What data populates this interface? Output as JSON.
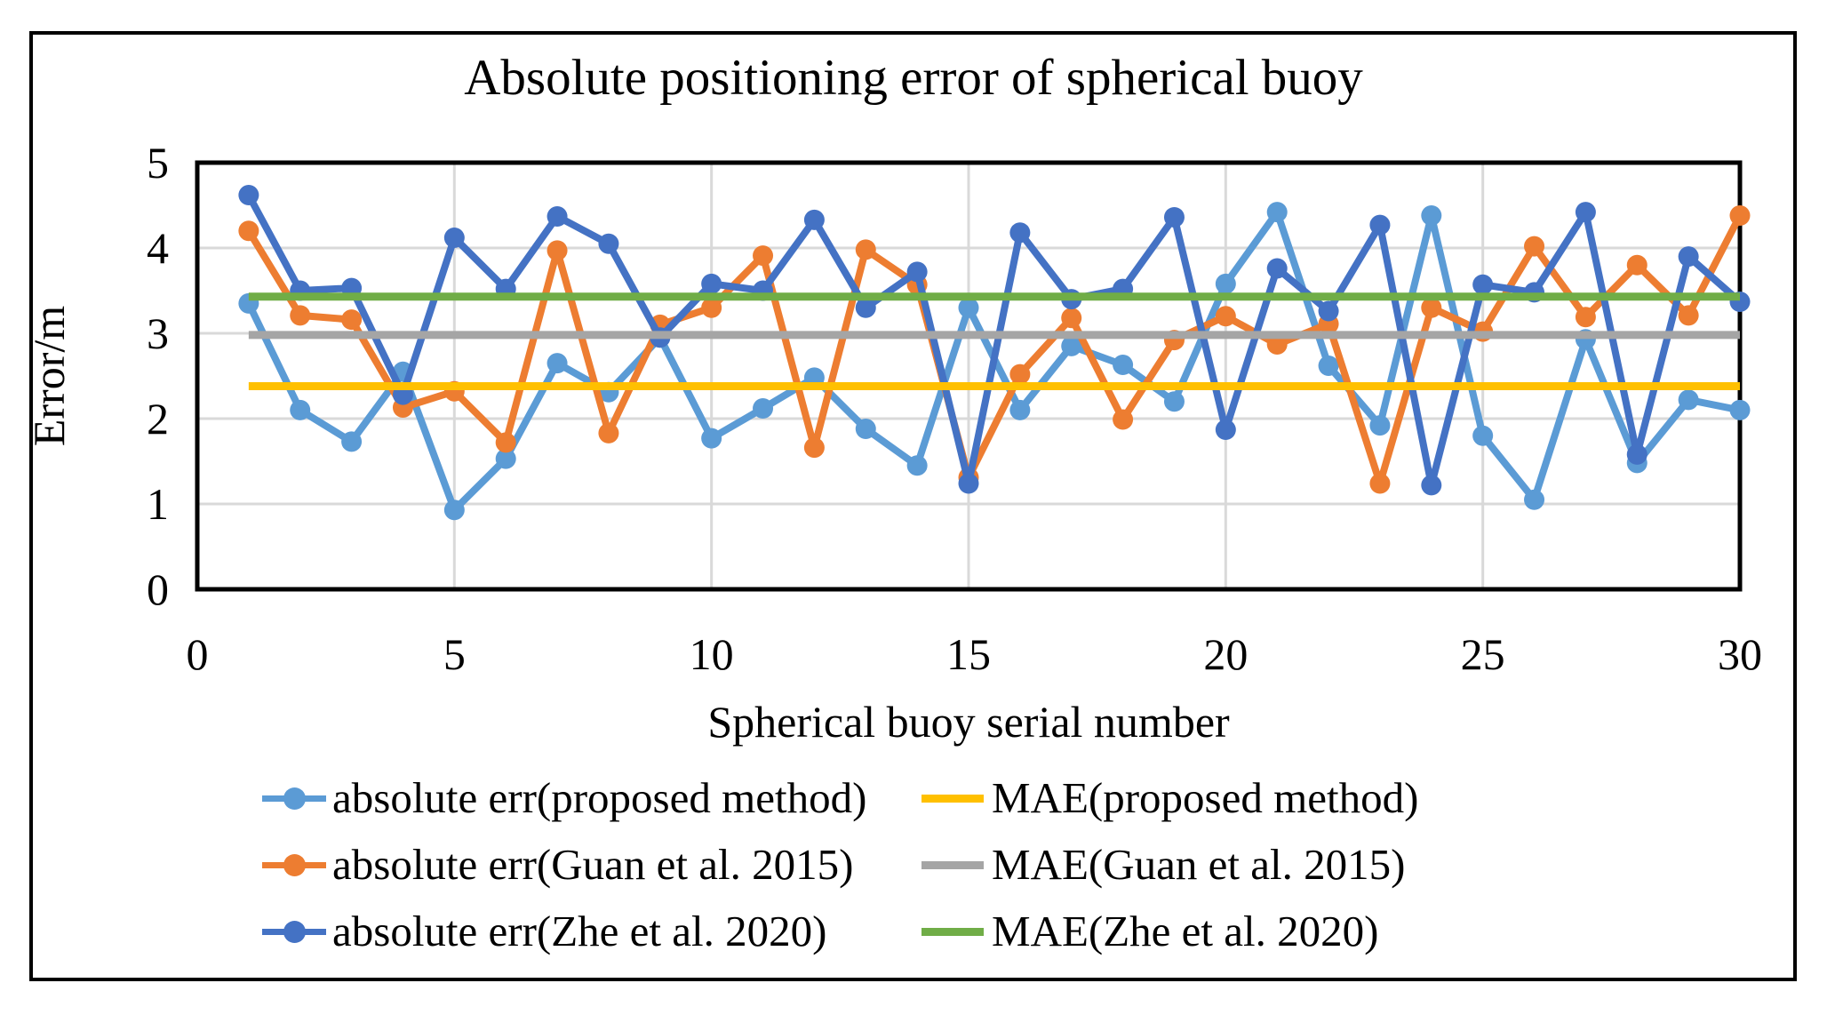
{
  "chart_data": {
    "type": "line",
    "title": "Absolute positioning error of spherical buoy",
    "xlabel": "Spherical buoy serial number",
    "ylabel": "Error/m",
    "xlim": [
      0,
      30
    ],
    "ylim": [
      0,
      5
    ],
    "x_ticks": [
      0,
      5,
      10,
      15,
      20,
      25,
      30
    ],
    "y_ticks": [
      0,
      1,
      2,
      3,
      4,
      5
    ],
    "grid": true,
    "grid_color": "#D9D9D9",
    "axis_color": "#000000",
    "legend_position": "bottom",
    "x": [
      1,
      2,
      3,
      4,
      5,
      6,
      7,
      8,
      9,
      10,
      11,
      12,
      13,
      14,
      15,
      16,
      17,
      18,
      19,
      20,
      21,
      22,
      23,
      24,
      25,
      26,
      27,
      28,
      29,
      30
    ],
    "series": [
      {
        "name": "absolute err(proposed method)",
        "color": "#5B9BD5",
        "marker": "circle",
        "values": [
          3.35,
          2.1,
          1.73,
          2.55,
          0.93,
          1.53,
          2.65,
          2.31,
          2.95,
          1.77,
          2.12,
          2.48,
          1.88,
          1.45,
          3.3,
          2.1,
          2.85,
          2.63,
          2.2,
          3.58,
          4.42,
          2.62,
          1.92,
          4.38,
          1.8,
          1.05,
          2.93,
          1.48,
          2.22,
          2.1
        ]
      },
      {
        "name": "absolute err(Guan et al. 2015)",
        "color": "#ED7D31",
        "marker": "circle",
        "values": [
          4.2,
          3.21,
          3.16,
          2.13,
          2.32,
          1.72,
          3.97,
          1.83,
          3.1,
          3.3,
          3.91,
          1.66,
          3.98,
          3.57,
          1.31,
          2.52,
          3.18,
          1.99,
          2.92,
          3.2,
          2.87,
          3.11,
          1.24,
          3.3,
          3.02,
          4.02,
          3.19,
          3.8,
          3.21,
          4.38
        ]
      },
      {
        "name": "absolute err(Zhe et al. 2020)",
        "color": "#4472C4",
        "marker": "circle",
        "values": [
          4.62,
          3.5,
          3.53,
          2.28,
          4.12,
          3.52,
          4.37,
          4.05,
          2.95,
          3.58,
          3.5,
          4.33,
          3.3,
          3.72,
          1.24,
          4.18,
          3.4,
          3.52,
          4.36,
          1.87,
          3.76,
          3.26,
          4.27,
          1.22,
          3.57,
          3.48,
          4.42,
          1.58,
          3.9,
          3.37
        ]
      },
      {
        "name": "MAE(proposed method)",
        "color": "#FFC000",
        "marker": "none",
        "constant": 2.38
      },
      {
        "name": "MAE(Guan et al. 2015)",
        "color": "#A5A5A5",
        "marker": "none",
        "constant": 2.98
      },
      {
        "name": "MAE(Zhe et al. 2020)",
        "color": "#70AD47",
        "marker": "none",
        "constant": 3.43
      }
    ]
  }
}
